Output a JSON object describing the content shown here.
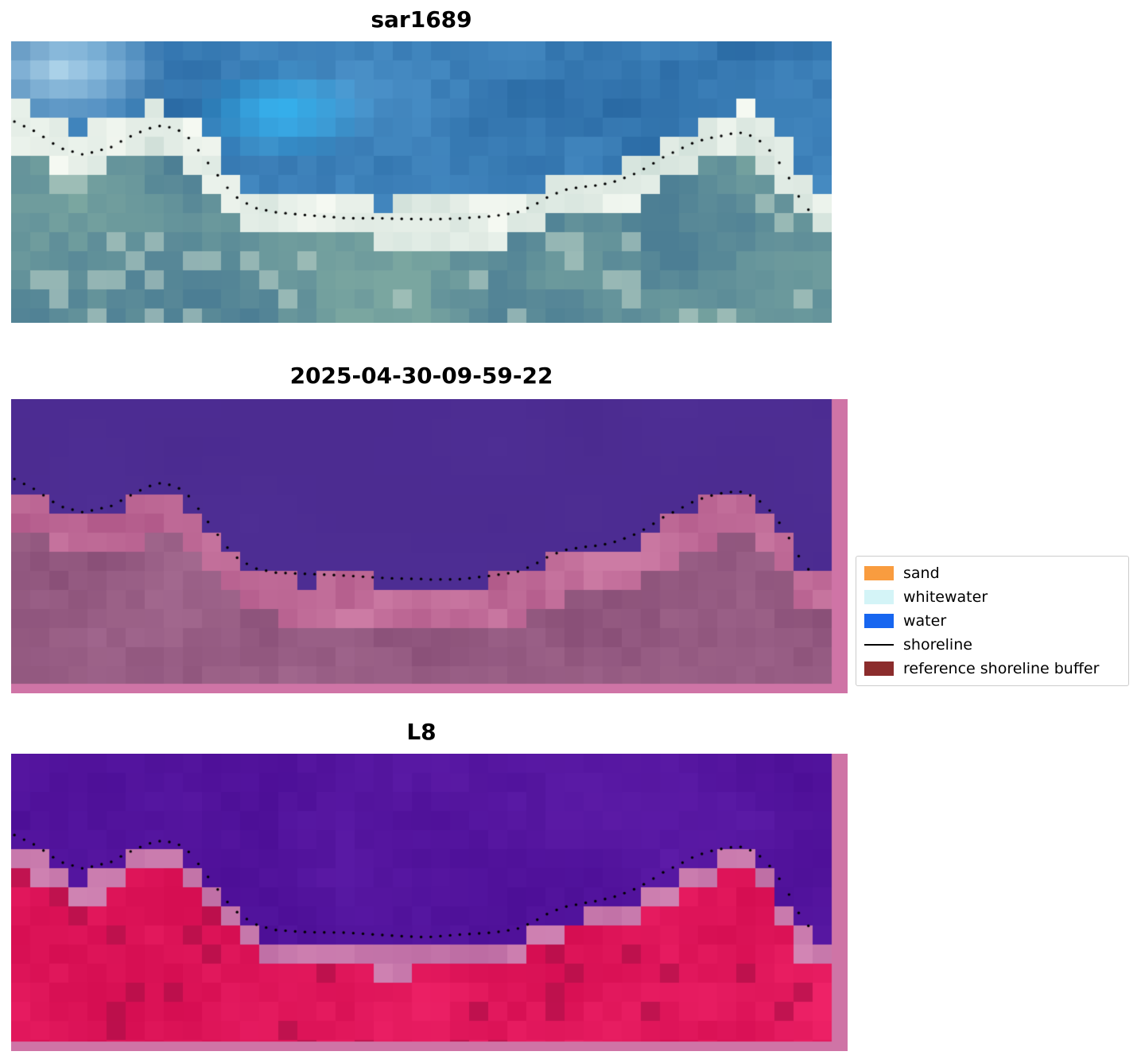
{
  "background": "#ffffff",
  "panels": [
    {
      "title": "sar1689",
      "style": "sar"
    },
    {
      "title": "2025-04-30-09-59-22",
      "style": "classified"
    },
    {
      "title": "L8",
      "style": "l8"
    }
  ],
  "legend": {
    "items": [
      {
        "label": "sand",
        "swatch": "patch",
        "color": "#f99c3f"
      },
      {
        "label": "whitewater",
        "swatch": "patch",
        "color": "#d4f4f7"
      },
      {
        "label": "water",
        "swatch": "patch",
        "color": "#1766f0"
      },
      {
        "label": "shoreline",
        "swatch": "line",
        "color": "#000000"
      },
      {
        "label": "reference shoreline buffer",
        "swatch": "patch",
        "color": "#8b2c2c"
      }
    ]
  },
  "palette": {
    "sar": {
      "water1": "#2a6aa4",
      "water2": "#4e95cc",
      "cyan": "#35b5f2",
      "light": "#b9dcef",
      "band1": "#cfdfd8",
      "band2": "#f5f9f2",
      "low1": "#4c7e94",
      "low2": "#7aa6a0",
      "lowlight": "#b9cfc8"
    },
    "classified": {
      "water1": "#4b2b90",
      "water2": "#503097",
      "band1": "#b25a8a",
      "band2": "#cc7ba4",
      "low1": "#8a5078",
      "low2": "#a2688e",
      "strip": "#cf74a6"
    },
    "l8": {
      "water1": "#4d0f97",
      "water2": "#5d1ca8",
      "band1": "#bb6aa2",
      "band2": "#d488b6",
      "low1": "#d60e52",
      "low2": "#ef2368",
      "dark": "#a50b42",
      "strip": "#cf74a6"
    }
  },
  "chart_data": {
    "type": "heatmap",
    "description": "Shoreline detection figure: SAR image, classified image, and L8 image with detected shoreline dots",
    "panel_titles": [
      "sar1689",
      "2025-04-30-09-59-22",
      "L8"
    ],
    "legend_entries": [
      "sand",
      "whitewater",
      "water",
      "shoreline",
      "reference shoreline buffer"
    ],
    "legend_position": "right",
    "shoreline_points_normalized": [
      [
        0.0,
        0.277
      ],
      [
        0.03,
        0.319
      ],
      [
        0.059,
        0.376
      ],
      [
        0.088,
        0.398
      ],
      [
        0.122,
        0.376
      ],
      [
        0.146,
        0.339
      ],
      [
        0.166,
        0.311
      ],
      [
        0.185,
        0.297
      ],
      [
        0.204,
        0.314
      ],
      [
        0.219,
        0.347
      ],
      [
        0.233,
        0.404
      ],
      [
        0.248,
        0.46
      ],
      [
        0.263,
        0.517
      ],
      [
        0.277,
        0.559
      ],
      [
        0.297,
        0.593
      ],
      [
        0.321,
        0.61
      ],
      [
        0.355,
        0.616
      ],
      [
        0.393,
        0.621
      ],
      [
        0.432,
        0.627
      ],
      [
        0.471,
        0.633
      ],
      [
        0.51,
        0.636
      ],
      [
        0.548,
        0.63
      ],
      [
        0.587,
        0.621
      ],
      [
        0.616,
        0.61
      ],
      [
        0.636,
        0.587
      ],
      [
        0.655,
        0.554
      ],
      [
        0.674,
        0.531
      ],
      [
        0.694,
        0.52
      ],
      [
        0.718,
        0.511
      ],
      [
        0.737,
        0.497
      ],
      [
        0.757,
        0.475
      ],
      [
        0.776,
        0.446
      ],
      [
        0.795,
        0.412
      ],
      [
        0.815,
        0.384
      ],
      [
        0.834,
        0.356
      ],
      [
        0.854,
        0.339
      ],
      [
        0.873,
        0.328
      ],
      [
        0.888,
        0.325
      ],
      [
        0.902,
        0.339
      ],
      [
        0.917,
        0.367
      ],
      [
        0.931,
        0.412
      ],
      [
        0.946,
        0.475
      ],
      [
        0.955,
        0.531
      ],
      [
        0.965,
        0.573
      ],
      [
        0.975,
        0.61
      ]
    ]
  }
}
